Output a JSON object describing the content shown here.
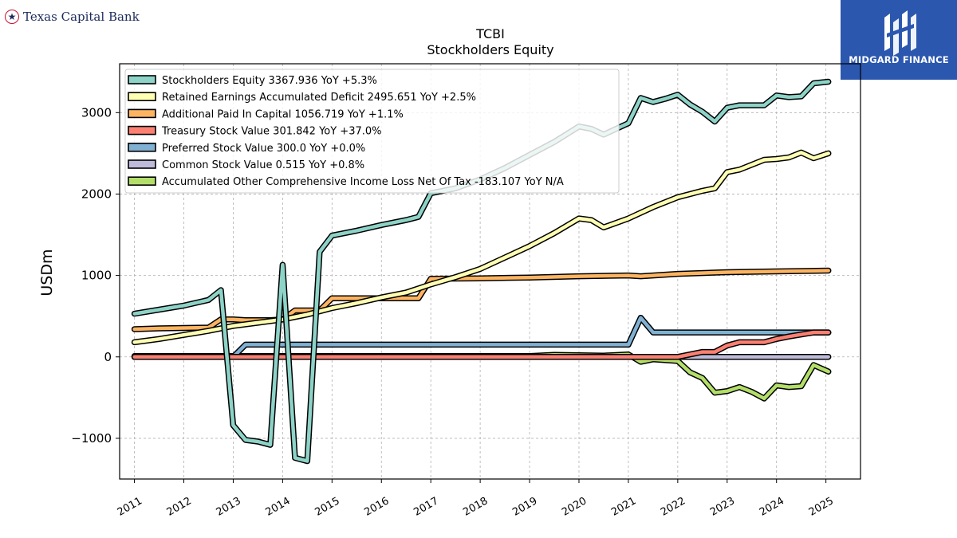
{
  "branding": {
    "left_logo_text": "Texas Capital Bank",
    "right_logo_text": "MIDGARD FINANCE"
  },
  "colors": {
    "right_logo_bg": "#2b57ae",
    "left_logo_text": "#1b2a5b",
    "left_logo_ring": "#c8102e"
  },
  "chart_data": {
    "type": "line",
    "title": "TCBI",
    "subtitle": "Stockholders  Equity",
    "xlabel": "",
    "ylabel": "USDm",
    "xlim": [
      2010.7,
      2025.7
    ],
    "ylim": [
      -1500,
      3600
    ],
    "yticks": [
      -1000,
      0,
      1000,
      2000,
      3000
    ],
    "ytick_labels": [
      "−1000",
      "0",
      "1000",
      "2000",
      "3000"
    ],
    "xticks": [
      2011,
      2012,
      2013,
      2014,
      2015,
      2016,
      2017,
      2018,
      2019,
      2020,
      2021,
      2022,
      2023,
      2024,
      2025
    ],
    "xtick_labels": [
      "2011",
      "2012",
      "2013",
      "2014",
      "2015",
      "2016",
      "2017",
      "2018",
      "2019",
      "2020",
      "2021",
      "2022",
      "2023",
      "2024",
      "2025"
    ],
    "grid": true,
    "legend_position": "top-left",
    "series": [
      {
        "name": "Stockholders Equity",
        "legend": "Stockholders Equity  3367.936 YoY +5.3%",
        "color": "#8dd3c7",
        "points": [
          [
            2011.0,
            530
          ],
          [
            2011.5,
            580
          ],
          [
            2012.0,
            630
          ],
          [
            2012.5,
            700
          ],
          [
            2012.75,
            820
          ],
          [
            2013.0,
            -840
          ],
          [
            2013.25,
            -1020
          ],
          [
            2013.5,
            -1040
          ],
          [
            2013.75,
            -1080
          ],
          [
            2014.0,
            1130
          ],
          [
            2014.25,
            -1240
          ],
          [
            2014.5,
            -1280
          ],
          [
            2014.75,
            1290
          ],
          [
            2015.0,
            1490
          ],
          [
            2015.5,
            1550
          ],
          [
            2016.0,
            1620
          ],
          [
            2016.5,
            1680
          ],
          [
            2016.75,
            1720
          ],
          [
            2017.0,
            2010
          ],
          [
            2017.5,
            2070
          ],
          [
            2018.0,
            2180
          ],
          [
            2018.5,
            2320
          ],
          [
            2019.0,
            2480
          ],
          [
            2019.5,
            2640
          ],
          [
            2020.0,
            2830
          ],
          [
            2020.25,
            2800
          ],
          [
            2020.5,
            2730
          ],
          [
            2021.0,
            2870
          ],
          [
            2021.25,
            3180
          ],
          [
            2021.5,
            3130
          ],
          [
            2021.75,
            3170
          ],
          [
            2022.0,
            3220
          ],
          [
            2022.25,
            3100
          ],
          [
            2022.5,
            3010
          ],
          [
            2022.75,
            2890
          ],
          [
            2023.0,
            3060
          ],
          [
            2023.25,
            3090
          ],
          [
            2023.75,
            3090
          ],
          [
            2024.0,
            3210
          ],
          [
            2024.25,
            3190
          ],
          [
            2024.5,
            3200
          ],
          [
            2024.75,
            3360
          ],
          [
            2025.05,
            3380
          ]
        ]
      },
      {
        "name": "Retained Earnings Accumulated Deficit",
        "legend": "Retained Earnings Accumulated Deficit  2495.651 YoY +2.5%",
        "color": "#ffffb3",
        "points": [
          [
            2011.0,
            180
          ],
          [
            2011.5,
            220
          ],
          [
            2012.0,
            270
          ],
          [
            2012.5,
            320
          ],
          [
            2013.0,
            380
          ],
          [
            2013.5,
            420
          ],
          [
            2014.0,
            460
          ],
          [
            2014.5,
            520
          ],
          [
            2015.0,
            600
          ],
          [
            2015.5,
            660
          ],
          [
            2016.0,
            730
          ],
          [
            2016.5,
            790
          ],
          [
            2017.0,
            890
          ],
          [
            2017.5,
            980
          ],
          [
            2018.0,
            1080
          ],
          [
            2018.5,
            1220
          ],
          [
            2019.0,
            1360
          ],
          [
            2019.5,
            1520
          ],
          [
            2020.0,
            1700
          ],
          [
            2020.25,
            1680
          ],
          [
            2020.5,
            1590
          ],
          [
            2021.0,
            1700
          ],
          [
            2021.5,
            1840
          ],
          [
            2022.0,
            1960
          ],
          [
            2022.5,
            2040
          ],
          [
            2022.75,
            2070
          ],
          [
            2023.0,
            2270
          ],
          [
            2023.25,
            2300
          ],
          [
            2023.75,
            2420
          ],
          [
            2024.0,
            2430
          ],
          [
            2024.25,
            2450
          ],
          [
            2024.5,
            2510
          ],
          [
            2024.75,
            2440
          ],
          [
            2025.05,
            2500
          ]
        ]
      },
      {
        "name": "Additional Paid In Capital",
        "legend": "Additional Paid In Capital  1056.719 YoY +1.1%",
        "color": "#fdb462",
        "points": [
          [
            2011.0,
            340
          ],
          [
            2011.5,
            350
          ],
          [
            2012.0,
            355
          ],
          [
            2012.5,
            360
          ],
          [
            2012.75,
            460
          ],
          [
            2013.0,
            460
          ],
          [
            2013.25,
            450
          ],
          [
            2013.75,
            450
          ],
          [
            2014.0,
            460
          ],
          [
            2014.25,
            570
          ],
          [
            2014.75,
            570
          ],
          [
            2015.0,
            720
          ],
          [
            2016.75,
            720
          ],
          [
            2017.0,
            960
          ],
          [
            2018.0,
            965
          ],
          [
            2019.0,
            975
          ],
          [
            2020.0,
            990
          ],
          [
            2021.0,
            1000
          ],
          [
            2021.25,
            990
          ],
          [
            2022.0,
            1020
          ],
          [
            2023.0,
            1040
          ],
          [
            2024.0,
            1050
          ],
          [
            2025.05,
            1060
          ]
        ]
      },
      {
        "name": "Treasury Stock Value",
        "legend": "Treasury Stock Value  301.842 YoY +37.0%",
        "color": "#fb8072",
        "points": [
          [
            2011.0,
            0
          ],
          [
            2022.0,
            0
          ],
          [
            2022.5,
            60
          ],
          [
            2022.75,
            60
          ],
          [
            2023.0,
            140
          ],
          [
            2023.25,
            180
          ],
          [
            2023.75,
            180
          ],
          [
            2024.0,
            220
          ],
          [
            2024.25,
            250
          ],
          [
            2024.75,
            300
          ],
          [
            2025.05,
            300
          ]
        ]
      },
      {
        "name": "Preferred Stock Value",
        "legend": "Preferred Stock Value  300.0 YoY +0.0%",
        "color": "#80b1d3",
        "points": [
          [
            2011.0,
            0
          ],
          [
            2013.0,
            0
          ],
          [
            2013.25,
            150
          ],
          [
            2021.0,
            150
          ],
          [
            2021.25,
            480
          ],
          [
            2021.5,
            300
          ],
          [
            2025.05,
            300
          ]
        ]
      },
      {
        "name": "Common Stock Value",
        "legend": "Common Stock Value  0.515 YoY +0.8%",
        "color": "#bebada",
        "points": [
          [
            2011.0,
            0
          ],
          [
            2025.05,
            1
          ]
        ]
      },
      {
        "name": "Accumulated Other Comprehensive Income Loss Net Of Tax",
        "legend": "Accumulated Other Comprehensive Income Loss Net Of Tax  -183.107 YoY N/A",
        "color": "#b3de69",
        "points": [
          [
            2011.0,
            10
          ],
          [
            2015.0,
            10
          ],
          [
            2019.0,
            10
          ],
          [
            2019.5,
            25
          ],
          [
            2020.0,
            20
          ],
          [
            2020.5,
            15
          ],
          [
            2021.0,
            30
          ],
          [
            2021.25,
            -60
          ],
          [
            2021.5,
            -30
          ],
          [
            2022.0,
            -50
          ],
          [
            2022.25,
            -190
          ],
          [
            2022.5,
            -260
          ],
          [
            2022.75,
            -440
          ],
          [
            2023.0,
            -420
          ],
          [
            2023.25,
            -370
          ],
          [
            2023.5,
            -430
          ],
          [
            2023.75,
            -510
          ],
          [
            2024.0,
            -350
          ],
          [
            2024.25,
            -370
          ],
          [
            2024.5,
            -360
          ],
          [
            2024.75,
            -100
          ],
          [
            2025.05,
            -180
          ]
        ]
      }
    ]
  }
}
